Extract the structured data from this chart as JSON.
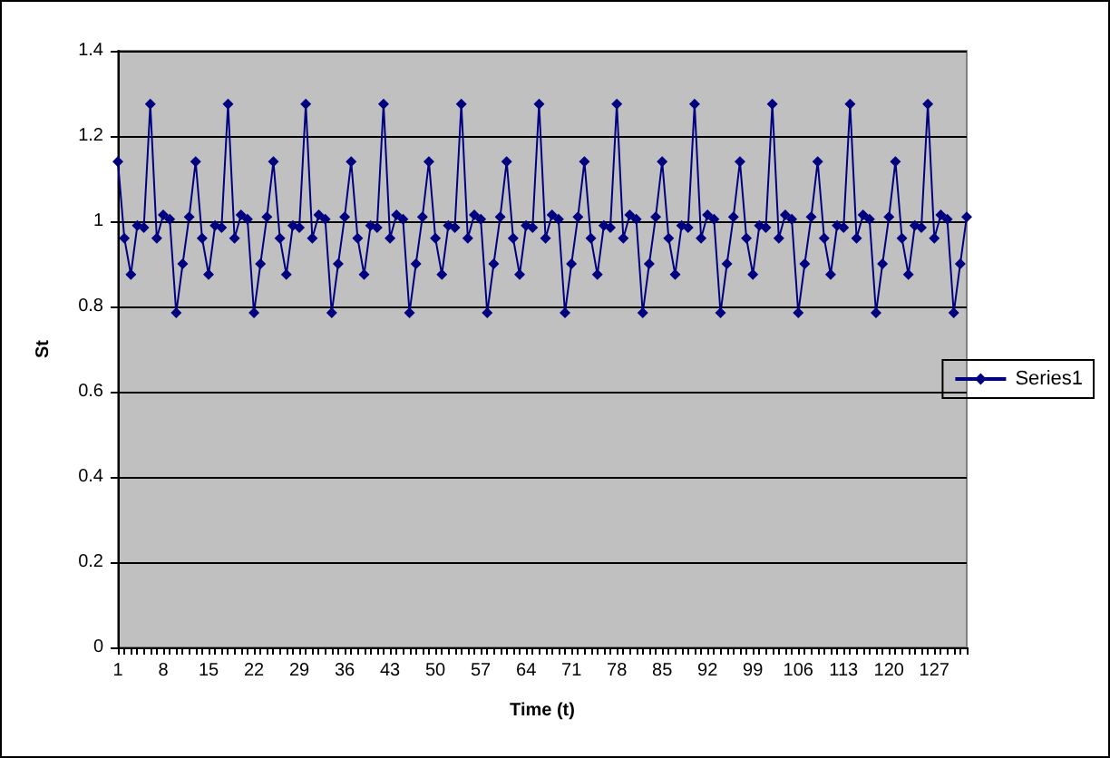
{
  "chart_data": {
    "type": "line",
    "xlabel": "Time (t)",
    "ylabel": "St",
    "categories": [
      "1",
      null,
      null,
      null,
      null,
      null,
      null,
      "8",
      null,
      null,
      null,
      null,
      null,
      null,
      "15",
      null,
      null,
      null,
      null,
      null,
      null,
      "22",
      null,
      null,
      null,
      null,
      null,
      null,
      "29",
      null,
      null,
      null,
      null,
      null,
      null,
      "36",
      null,
      null,
      null,
      null,
      null,
      null,
      "43",
      null,
      null,
      null,
      null,
      null,
      null,
      "50",
      null,
      null,
      null,
      null,
      null,
      null,
      "57",
      null,
      null,
      null,
      null,
      null,
      null,
      "64",
      null,
      null,
      null,
      null,
      null,
      null,
      "71",
      null,
      null,
      null,
      null,
      null,
      null,
      "78",
      null,
      null,
      null,
      null,
      null,
      null,
      "85",
      null,
      null,
      null,
      null,
      null,
      null,
      "92",
      null,
      null,
      null,
      null,
      null,
      null,
      "99",
      null,
      null,
      null,
      null,
      null,
      null,
      "106",
      null,
      null,
      null,
      null,
      null,
      null,
      "113",
      null,
      null,
      null,
      null,
      null,
      null,
      "120",
      null,
      null,
      null,
      null,
      null,
      null,
      "127",
      null,
      null,
      null,
      null,
      null
    ],
    "series": [
      {
        "name": "Series1",
        "color": "#000080",
        "values": [
          1.14,
          0.96,
          0.875,
          0.99,
          0.985,
          1.275,
          0.96,
          1.015,
          1.005,
          0.785,
          0.9,
          1.01,
          1.14,
          0.96,
          0.875,
          0.99,
          0.985,
          1.275,
          0.96,
          1.015,
          1.005,
          0.785,
          0.9,
          1.01,
          1.14,
          0.96,
          0.875,
          0.99,
          0.985,
          1.275,
          0.96,
          1.015,
          1.005,
          0.785,
          0.9,
          1.01,
          1.14,
          0.96,
          0.875,
          0.99,
          0.985,
          1.275,
          0.96,
          1.015,
          1.005,
          0.785,
          0.9,
          1.01,
          1.14,
          0.96,
          0.875,
          0.99,
          0.985,
          1.275,
          0.96,
          1.015,
          1.005,
          0.785,
          0.9,
          1.01,
          1.14,
          0.96,
          0.875,
          0.99,
          0.985,
          1.275,
          0.96,
          1.015,
          1.005,
          0.785,
          0.9,
          1.01,
          1.14,
          0.96,
          0.875,
          0.99,
          0.985,
          1.275,
          0.96,
          1.015,
          1.005,
          0.785,
          0.9,
          1.01,
          1.14,
          0.96,
          0.875,
          0.99,
          0.985,
          1.275,
          0.96,
          1.015,
          1.005,
          0.785,
          0.9,
          1.01,
          1.14,
          0.96,
          0.875,
          0.99,
          0.985,
          1.275,
          0.96,
          1.015,
          1.005,
          0.785,
          0.9,
          1.01,
          1.14,
          0.96,
          0.875,
          0.99,
          0.985,
          1.275,
          0.96,
          1.015,
          1.005,
          0.785,
          0.9,
          1.01,
          1.14,
          0.96,
          0.875,
          0.99,
          0.985,
          1.275,
          0.96,
          1.015,
          1.005,
          0.785,
          0.9,
          1.01
        ]
      }
    ],
    "ylim": [
      0,
      1.4
    ],
    "yticks": [
      0,
      0.2,
      0.4,
      0.6,
      0.8,
      1,
      1.2,
      1.4
    ],
    "grid": "y",
    "legend": "right",
    "marker": "diamond",
    "line_style": "solid"
  }
}
